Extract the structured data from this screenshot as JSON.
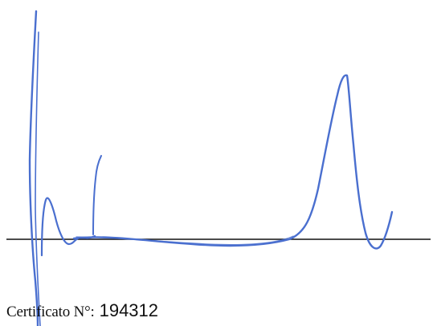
{
  "certificate": {
    "label": "Certificato N°:",
    "number": "194312"
  },
  "colors": {
    "ink": "#4a6fcf",
    "baseline": "#111111",
    "text": "#111111"
  }
}
